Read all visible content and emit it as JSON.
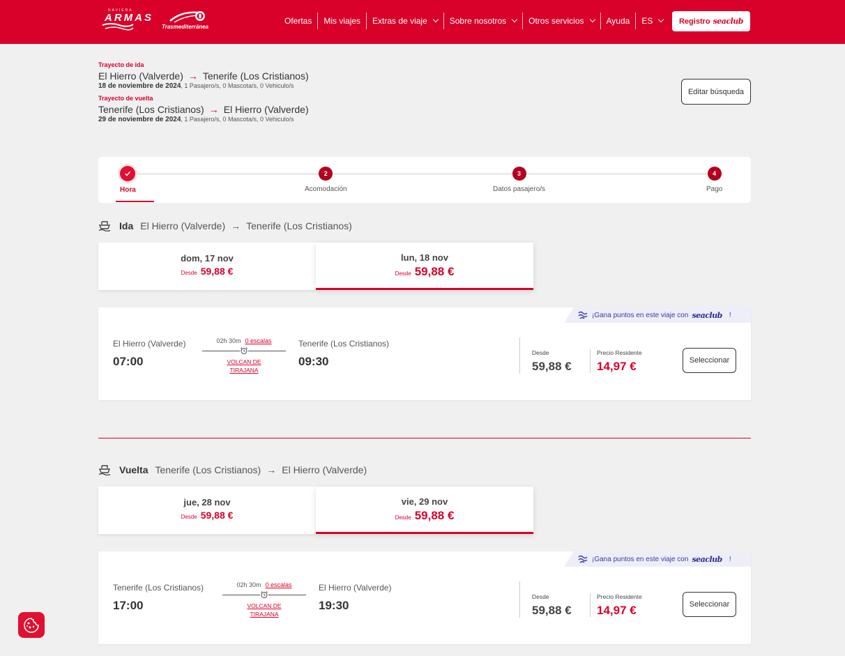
{
  "header": {
    "brand_small": "NAVIERA",
    "brand": "ARMAS",
    "brand2": "Trasmediterránea",
    "nav": [
      "Ofertas",
      "Mis viajes",
      "Extras de viaje",
      "Sobre nosotros",
      "Otros servicios",
      "Ayuda",
      "ES"
    ],
    "registro_label": "Registro",
    "seaclub": "seaclub"
  },
  "search": {
    "outbound_label": "Trayecto de ida",
    "outbound_from": "El Hierro (Valverde)",
    "outbound_to": "Tenerife (Los Cristianos)",
    "outbound_date": "18 de noviembre de 2024",
    "outbound_meta": ", 1 Pasajero/s, 0 Mascota/s, 0 Vehiculo/s",
    "return_label": "Trayecto de vuelta",
    "return_from": "Tenerife (Los Cristianos)",
    "return_to": "El Hierro (Valverde)",
    "return_date": "29 de noviembre de 2024",
    "return_meta": ", 1 Pasajero/s, 0 Mascota/s, 0 Vehiculo/s",
    "edit_label": "Editar búsqueda"
  },
  "steps": [
    {
      "num": "",
      "label": "Hora"
    },
    {
      "num": "2",
      "label": "Acomodación"
    },
    {
      "num": "3",
      "label": "Datos pasajero/s"
    },
    {
      "num": "4",
      "label": "Pago"
    }
  ],
  "ida": {
    "dir": "Ida",
    "from": "El Hierro (Valverde)",
    "to": "Tenerife (Los Cristianos)",
    "dates": [
      {
        "day": "dom, 17 nov",
        "desde": "Desde",
        "price": "59,88 €"
      },
      {
        "day": "lun, 18 nov",
        "desde": "Desde",
        "price": "59,88 €"
      }
    ],
    "trip": {
      "badge_pre": "¡Gana puntos en este viaje con",
      "badge_brand": "seaclub",
      "badge_post": "!",
      "from": "El Hierro (Valverde)",
      "dep": "07:00",
      "duration": "02h 30m",
      "stops": "0 escalas",
      "ship_1": "VOLCAN DE",
      "ship_2": "TIRAJANA",
      "to": "Tenerife (Los Cristianos)",
      "arr": "09:30",
      "desde_label": "Desde",
      "desde_price": "59,88 €",
      "res_label": "Precio Residente",
      "res_price": "14,97 €",
      "select_label": "Seleccionar"
    }
  },
  "vuelta": {
    "dir": "Vuelta",
    "from": "Tenerife (Los Cristianos)",
    "to": "El Hierro (Valverde)",
    "dates": [
      {
        "day": "jue, 28 nov",
        "desde": "Desde",
        "price": "59,88 €"
      },
      {
        "day": "vie, 29 nov",
        "desde": "Desde",
        "price": "59,88 €"
      }
    ],
    "trip": {
      "badge_pre": "¡Gana puntos en este viaje con",
      "badge_brand": "seaclub",
      "badge_post": "!",
      "from": "Tenerife (Los Cristianos)",
      "dep": "17:00",
      "duration": "02h 30m",
      "stops": "0 escalas",
      "ship_1": "VOLCAN DE",
      "ship_2": "TIRAJANA",
      "to": "El Hierro (Valverde)",
      "arr": "19:30",
      "desde_label": "Desde",
      "desde_price": "59,88 €",
      "res_label": "Precio Residente",
      "res_price": "14,97 €",
      "select_label": "Seleccionar"
    }
  }
}
